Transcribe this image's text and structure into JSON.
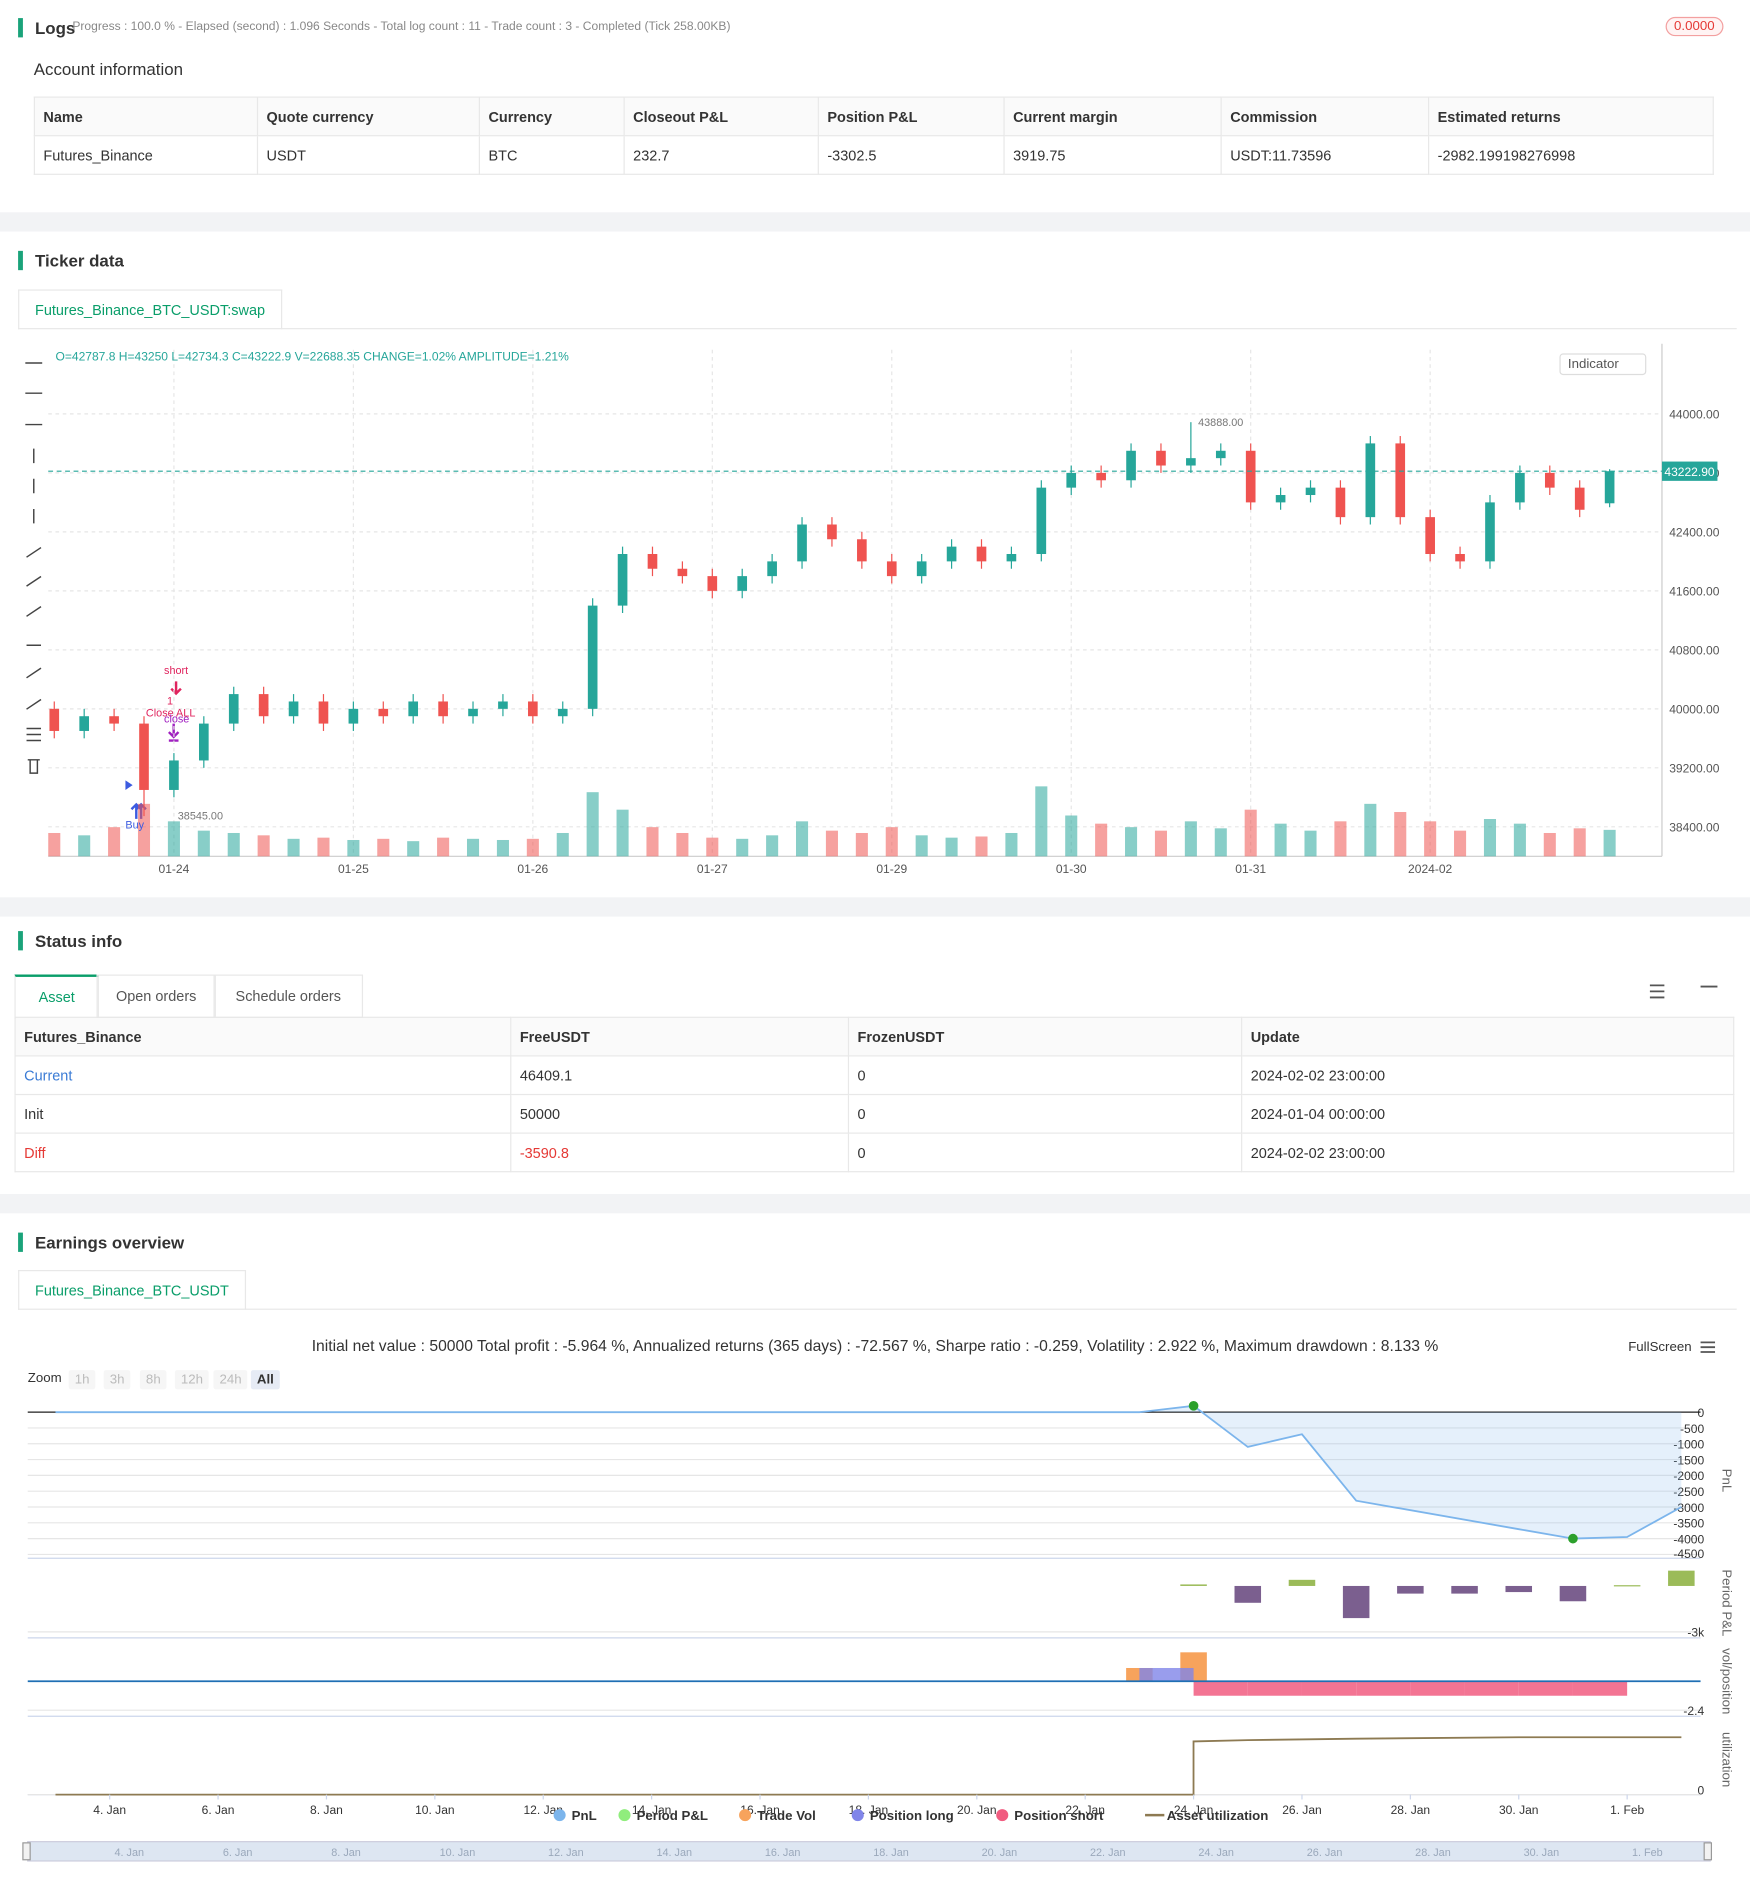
{
  "logs": {
    "title": "Logs",
    "progress": "Progress : 100.0 % - Elapsed (second) : 1.096 Seconds - Total log count : 11 - Trade count : 3 - Completed (Tick 258.00KB)",
    "badge": "0.0000"
  },
  "account": {
    "title": "Account information",
    "columns": [
      "Name",
      "Quote currency",
      "Currency",
      "Closeout P&L",
      "Position P&L",
      "Current margin",
      "Commission",
      "Estimated returns"
    ],
    "rows": [
      [
        "Futures_Binance",
        "USDT",
        "BTC",
        "232.7",
        "-3302.5",
        "3919.75",
        "USDT:11.73596",
        "-2982.199198276998"
      ]
    ]
  },
  "ticker": {
    "title": "Ticker data",
    "tab": "Futures_Binance_BTC_USDT:swap",
    "info": "O=42787.8 H=43250 L=42734.3 C=43222.9 V=22688.35 CHANGE=1.02% AMPLITUDE=1.21%",
    "indicator": "Indicator",
    "signals": [
      "short",
      "1",
      "Close ALL",
      "close",
      "Buy"
    ],
    "chart_data": {
      "type": "candlestick",
      "categories": [
        null,
        null,
        null,
        null,
        "01-24",
        null,
        null,
        null,
        null,
        null,
        "01-25",
        null,
        null,
        null,
        null,
        null,
        "01-26",
        null,
        null,
        null,
        null,
        null,
        "01-27",
        null,
        null,
        null,
        null,
        null,
        "01-29",
        null,
        null,
        null,
        null,
        null,
        "01-30",
        null,
        null,
        null,
        null,
        null,
        "01-31",
        null,
        null,
        null,
        null,
        null,
        "2024-02",
        null,
        null,
        null,
        null,
        null,
        null
      ],
      "open": [
        40000,
        39700,
        39900,
        39800,
        38900,
        39300,
        39800,
        40200,
        39900,
        40100,
        39800,
        40000,
        39900,
        40100,
        39900,
        40000,
        40100,
        39900,
        40000,
        41400,
        42100,
        41900,
        41800,
        41600,
        41800,
        42000,
        42500,
        42300,
        42000,
        41800,
        42000,
        42200,
        42000,
        42100,
        43000,
        43200,
        43100,
        43500,
        43300,
        43400,
        43500,
        42800,
        42900,
        43000,
        42600,
        43600,
        42600,
        42100,
        42000,
        42800,
        43200,
        43000,
        42787.8
      ],
      "high": [
        40100,
        40000,
        40000,
        39900,
        39400,
        39900,
        40300,
        40300,
        40200,
        40200,
        40100,
        40100,
        40200,
        40200,
        40100,
        40200,
        40200,
        40100,
        41500,
        42200,
        42200,
        42000,
        41900,
        41900,
        42100,
        42600,
        42600,
        42400,
        42100,
        42100,
        42300,
        42300,
        42200,
        43100,
        43300,
        43300,
        43600,
        43600,
        43888,
        43600,
        43600,
        43000,
        43100,
        43100,
        43700,
        43700,
        42700,
        42200,
        42900,
        43300,
        43300,
        43100,
        43250
      ],
      "low": [
        39600,
        39600,
        39700,
        38545,
        38800,
        39200,
        39700,
        39800,
        39800,
        39700,
        39700,
        39800,
        39800,
        39800,
        39800,
        39900,
        39800,
        39800,
        39900,
        41300,
        41800,
        41700,
        41500,
        41500,
        41700,
        41900,
        42200,
        41900,
        41700,
        41700,
        41900,
        41900,
        41900,
        42000,
        42900,
        43000,
        43000,
        43200,
        43200,
        43300,
        42700,
        42700,
        42800,
        42500,
        42500,
        42500,
        42000,
        41900,
        41900,
        42700,
        42900,
        42600,
        42734.3
      ],
      "close": [
        39700,
        39900,
        39800,
        38900,
        39300,
        39800,
        40200,
        39900,
        40100,
        39800,
        40000,
        39900,
        40100,
        39900,
        40000,
        40100,
        39900,
        40000,
        41400,
        42100,
        41900,
        41800,
        41600,
        41800,
        42000,
        42500,
        42300,
        42000,
        41800,
        42000,
        42200,
        42000,
        42100,
        43000,
        43200,
        43100,
        43500,
        43300,
        43400,
        43500,
        42800,
        42900,
        43000,
        42600,
        43600,
        42600,
        42100,
        42000,
        42800,
        43200,
        43000,
        42700,
        43222.9
      ],
      "volume": [
        20000,
        18000,
        25000,
        45000,
        30000,
        22000,
        20000,
        18000,
        15000,
        16000,
        14000,
        15000,
        13000,
        16000,
        15000,
        14000,
        15000,
        20000,
        55000,
        40000,
        25000,
        20000,
        16000,
        15000,
        18000,
        30000,
        22000,
        20000,
        25000,
        18000,
        16000,
        17000,
        20000,
        60000,
        35000,
        28000,
        25000,
        22000,
        30000,
        24000,
        40000,
        28000,
        22000,
        30000,
        45000,
        38000,
        30000,
        22000,
        32000,
        28000,
        20000,
        24000,
        22688.35
      ],
      "colors": {
        "up": "#26a69a",
        "down": "#ef5350"
      },
      "ylim": [
        38000,
        44870
      ],
      "yticks": [
        {
          "value": 38400,
          "label": "38400.00"
        },
        {
          "value": 39200,
          "label": "39200.00"
        },
        {
          "value": 40000,
          "label": "40000.00"
        },
        {
          "value": 40800,
          "label": "40800.00"
        },
        {
          "value": 41600,
          "label": "41600.00"
        },
        {
          "value": 42400,
          "label": "42400.00"
        },
        {
          "value": 43200,
          "label": "43200.00"
        },
        {
          "value": 44000,
          "label": "44000.00"
        }
      ],
      "grid": true,
      "last_price": {
        "value": 43222.9,
        "label": "43222.90"
      },
      "high_label": {
        "value": 43888,
        "label": "43888.00"
      },
      "low_label": {
        "value": 38545,
        "label": "38545.00"
      }
    }
  },
  "status": {
    "title": "Status info",
    "tabs": [
      "Asset",
      "Open orders",
      "Schedule orders"
    ],
    "columns": [
      "Futures_Binance",
      "FreeUSDT",
      "FrozenUSDT",
      "Update"
    ],
    "rows": [
      [
        "Current",
        "46409.1",
        "0",
        "2024-02-02 23:00:00"
      ],
      [
        "Init",
        "50000",
        "0",
        "2024-01-04 00:00:00"
      ],
      [
        "Diff",
        "-3590.8",
        "0",
        "2024-02-02 23:00:00"
      ]
    ]
  },
  "earnings": {
    "title": "Earnings overview",
    "tab": "Futures_Binance_BTC_USDT",
    "summary": "Initial net value : 50000 Total profit : -5.964 %, Annualized returns (365 days) : -72.567 %, Sharpe ratio : -0.259, Volatility : 2.922 %, Maximum drawdown : 8.133 %",
    "zoom_label": "Zoom",
    "zoom_buttons": [
      "1h",
      "3h",
      "8h",
      "12h",
      "24h",
      "All"
    ],
    "fullscreen": "FullScreen",
    "chart_data": [
      {
        "type": "area",
        "name": "PnL",
        "axis_title": "PnL",
        "color": "#7cb5ec",
        "x": [
          "01-03",
          "01-23",
          "01-24",
          "01-25",
          "01-26",
          "01-27",
          "01-30",
          "01-31",
          "02-01",
          "02-02"
        ],
        "values": [
          0,
          0,
          200,
          -1100,
          -700,
          -2800,
          -3700,
          -4000,
          -3950,
          -3000
        ],
        "xlim": [
          "01-03",
          "02-03"
        ],
        "ylim": [
          -4620,
          300
        ],
        "yticks": [
          0,
          -500,
          -1000,
          -1500,
          -2000,
          -2500,
          -3000,
          -3500,
          -4000,
          -4500
        ]
      },
      {
        "type": "bar",
        "name": "Period P&L",
        "axis_title": "Period P&L",
        "color": "#90ed7d",
        "colors": {
          "positive": "#9bbb59",
          "negative": "#7b5f8f"
        },
        "x": [
          "01-24",
          "01-25",
          "01-26",
          "01-27",
          "01-28",
          "01-29",
          "01-30",
          "01-31",
          "02-01",
          "02-02"
        ],
        "values": [
          100,
          -1100,
          400,
          -2100,
          -500,
          -500,
          -400,
          -1000,
          50,
          1000
        ],
        "xlim": [
          "01-03",
          "02-03"
        ],
        "ylim": [
          -3390,
          1180
        ],
        "yticks": [
          {
            "value": -3000,
            "label": "-3k"
          }
        ]
      },
      {
        "type": "position",
        "axis_title": "vol/position",
        "series": [
          {
            "name": "Trade Vol",
            "color": "#f7a35c",
            "x": [
              "01-23",
              "01-24"
            ],
            "values": [
              1.1,
              2.4
            ]
          },
          {
            "name": "Position long",
            "color": "#8085e9",
            "x": [
              "01-23",
              "01-24"
            ],
            "values": [
              1.1,
              0
            ]
          },
          {
            "name": "Position short",
            "color": "#f15c80",
            "x": [
              "01-24",
              "01-25",
              "01-26",
              "01-27",
              "01-28",
              "01-29",
              "01-30",
              "01-31",
              "02-01"
            ],
            "values": [
              -1.2,
              -1.2,
              -1.2,
              -1.2,
              -1.2,
              -1.2,
              -1.2,
              -1.2,
              0
            ]
          }
        ],
        "xlim": [
          "01-03",
          "02-03"
        ],
        "ylim": [
          -2.9,
          2.9
        ],
        "yticks": [
          -2.4
        ]
      },
      {
        "type": "line",
        "axis_title": "utilization",
        "series": [
          {
            "name": "Asset utilization",
            "color": "#8d7a52",
            "x": [
              "01-03",
              "01-24",
              "01-24",
              "01-25",
              "01-27",
              "01-30",
              "02-02"
            ],
            "values": [
              0,
              0,
              0.19,
              0.195,
              0.2,
              0.205,
              0.205
            ]
          }
        ],
        "xlim": [
          "01-03",
          "02-03"
        ],
        "ylim": [
          0,
          0.25
        ],
        "yticks": [
          0
        ],
        "xticks": [
          {
            "value": "01-04",
            "label": "4. Jan"
          },
          {
            "value": "01-06",
            "label": "6. Jan"
          },
          {
            "value": "01-08",
            "label": "8. Jan"
          },
          {
            "value": "01-10",
            "label": "10. Jan"
          },
          {
            "value": "01-12",
            "label": "12. Jan"
          },
          {
            "value": "01-14",
            "label": "14. Jan"
          },
          {
            "value": "01-16",
            "label": "16. Jan"
          },
          {
            "value": "01-18",
            "label": "18. Jan"
          },
          {
            "value": "01-20",
            "label": "20. Jan"
          },
          {
            "value": "01-22",
            "label": "22. Jan"
          },
          {
            "value": "01-24",
            "label": "24. Jan"
          },
          {
            "value": "01-26",
            "label": "26. Jan"
          },
          {
            "value": "01-28",
            "label": "28. Jan"
          },
          {
            "value": "01-30",
            "label": "30. Jan"
          },
          {
            "value": "02-01",
            "label": "1. Feb"
          }
        ]
      }
    ]
  }
}
